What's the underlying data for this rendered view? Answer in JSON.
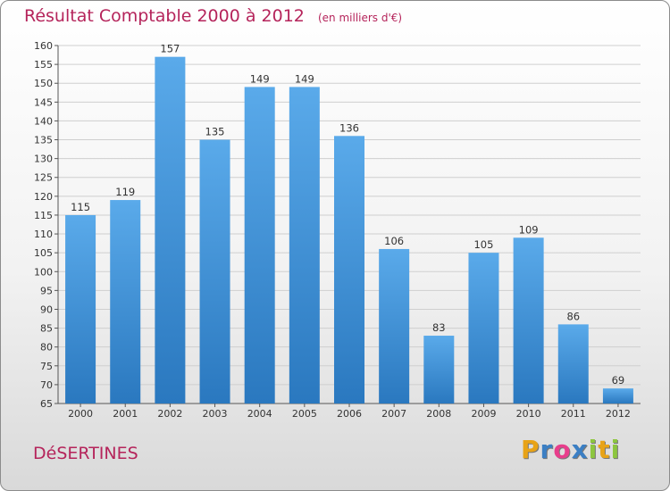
{
  "title": "Résultat Comptable 2000 à 2012",
  "unit": "(en milliers d'€)",
  "city": "DéSERTINES",
  "brand": {
    "name": "Proxiti",
    "letters": [
      "P",
      "r",
      "o",
      "x",
      "i",
      "t",
      "i"
    ],
    "colors": [
      "#e8a317",
      "#3b7fc4",
      "#e83e8c",
      "#3b7fc4",
      "#8dc63f",
      "#e8a317",
      "#8dc63f"
    ]
  },
  "colors": {
    "bar_top": "#5aaaea",
    "bar_bottom": "#2a78bf",
    "title": "#b5245b"
  },
  "chart_data": {
    "type": "bar",
    "title": "Résultat Comptable 2000 à 2012",
    "xlabel": "",
    "ylabel": "",
    "ylim": [
      65,
      160
    ],
    "yticks": [
      65,
      70,
      75,
      80,
      85,
      90,
      95,
      100,
      105,
      110,
      115,
      120,
      125,
      130,
      135,
      140,
      145,
      150,
      155,
      160
    ],
    "grid": true,
    "categories": [
      "2000",
      "2001",
      "2002",
      "2003",
      "2004",
      "2005",
      "2006",
      "2007",
      "2008",
      "2009",
      "2010",
      "2011",
      "2012"
    ],
    "values": [
      115,
      119,
      157,
      135,
      149,
      149,
      136,
      106,
      83,
      105,
      109,
      86,
      69
    ]
  }
}
